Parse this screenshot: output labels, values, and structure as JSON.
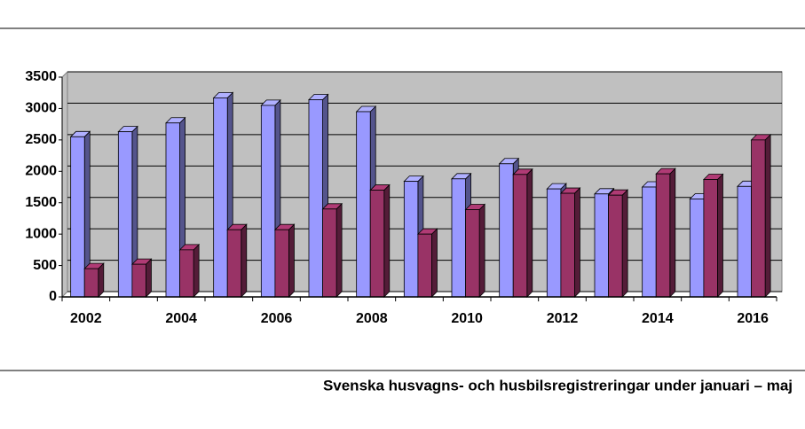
{
  "chart_data": {
    "type": "bar3d",
    "title": "Svenska husvagns- och husbilsregistreringar under januari – maj",
    "categories": [
      "2002",
      null,
      "2004",
      null,
      "2006",
      null,
      "2008",
      null,
      "2010",
      null,
      "2012",
      null,
      "2014",
      null,
      "2016"
    ],
    "series": [
      {
        "color": "#9999ff",
        "values": [
          2550,
          2630,
          2770,
          3170,
          3050,
          3140,
          2950,
          1840,
          1880,
          2120,
          1720,
          1640,
          1750,
          1560,
          1760
        ]
      },
      {
        "color": "#993366",
        "values": [
          450,
          520,
          750,
          1070,
          1070,
          1400,
          1700,
          1000,
          1390,
          1950,
          1650,
          1620,
          1960,
          1870,
          2500
        ]
      }
    ],
    "ylim": [
      0,
      3500
    ],
    "yticks": [
      0,
      500,
      1000,
      1500,
      2000,
      2500,
      3000,
      3500
    ],
    "grid": true
  }
}
